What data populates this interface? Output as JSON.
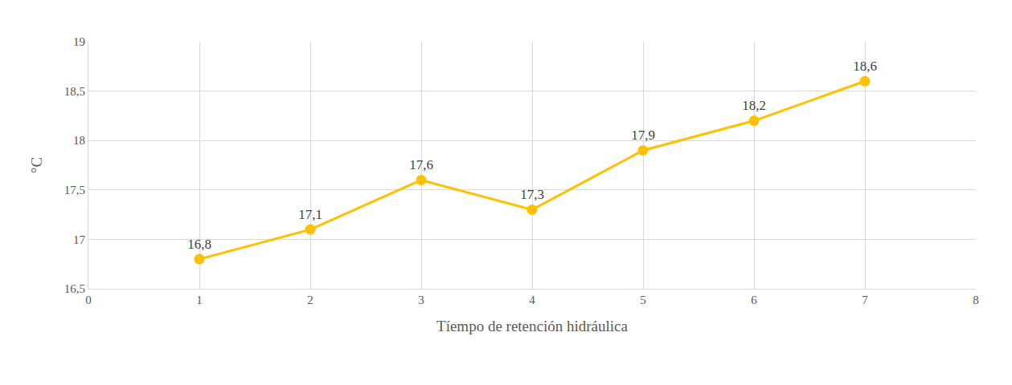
{
  "chart_data": {
    "type": "line",
    "x_label": "Tíempo de retención hidráulica",
    "y_label": "°C",
    "x": [
      1,
      2,
      3,
      4,
      5,
      6,
      7
    ],
    "values": [
      16.8,
      17.1,
      17.6,
      17.3,
      17.9,
      18.2,
      18.6
    ],
    "value_labels": [
      "16,8",
      "17,1",
      "17,6",
      "17,3",
      "17,9",
      "18,2",
      "18,6"
    ],
    "color": "#ffc000",
    "marker": "circle",
    "line_style": "solid",
    "data_labels": true,
    "xlim": [
      0,
      8
    ],
    "xticks": [
      0,
      1,
      2,
      3,
      4,
      5,
      6,
      7,
      8
    ],
    "ylim": [
      16.5,
      19
    ],
    "yticks": [
      {
        "value": 16.5,
        "label": "16,5"
      },
      17,
      {
        "value": 17.5,
        "label": "17,5"
      },
      18,
      {
        "value": 18.5,
        "label": "18,5"
      },
      19
    ],
    "grid": true
  }
}
